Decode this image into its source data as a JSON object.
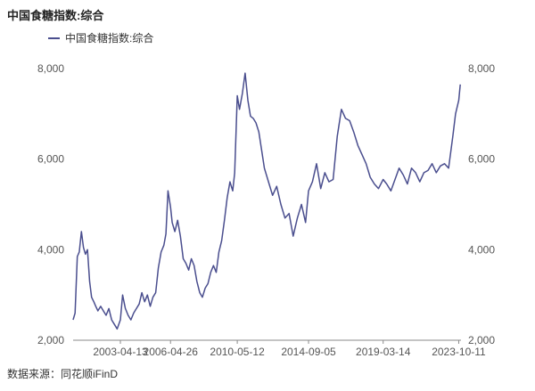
{
  "chart_data": {
    "type": "line",
    "title": "中国食糖指数:综合",
    "legend": {
      "position": "top-left",
      "entries": [
        "中国食糖指数:综合"
      ]
    },
    "source": "数据来源：同花顺iFinD",
    "line_color": "#4a4e8e",
    "grid": false,
    "xlabel": "",
    "ylabel": "",
    "xlim": [
      "2000-06-01",
      "2023-11-30"
    ],
    "ylim": [
      2000,
      8000
    ],
    "x_ticks": [
      "2003-04-13",
      "2006-04-26",
      "2010-05-12",
      "2014-09-05",
      "2019-03-14",
      "2023-10-11"
    ],
    "y_ticks_left": [
      "2,000",
      "4,000",
      "6,000",
      "8,000"
    ],
    "y_ticks_right": [
      "2,000",
      "4,000",
      "6,000",
      "8,000"
    ],
    "y_tick_values": [
      2000,
      4000,
      6000,
      8000
    ],
    "series": [
      {
        "name": "中国食糖指数:综合",
        "x": [
          "2000-06-01",
          "2000-07-15",
          "2000-09-01",
          "2000-10-15",
          "2000-12-01",
          "2001-01-15",
          "2001-03-01",
          "2001-04-15",
          "2001-06-01",
          "2001-07-15",
          "2001-09-01",
          "2001-10-15",
          "2001-12-01",
          "2002-02-01",
          "2002-04-01",
          "2002-06-01",
          "2002-08-01",
          "2002-10-01",
          "2002-12-01",
          "2003-02-01",
          "2003-04-13",
          "2003-06-01",
          "2003-08-01",
          "2003-10-01",
          "2003-12-01",
          "2004-02-01",
          "2004-04-01",
          "2004-06-01",
          "2004-08-01",
          "2004-10-01",
          "2004-12-01",
          "2005-02-01",
          "2005-04-01",
          "2005-06-01",
          "2005-08-01",
          "2005-10-01",
          "2005-12-01",
          "2006-01-15",
          "2006-03-01",
          "2006-04-26",
          "2006-06-01",
          "2006-08-01",
          "2006-10-01",
          "2006-12-01",
          "2007-02-01",
          "2007-04-01",
          "2007-06-01",
          "2007-08-01",
          "2007-10-01",
          "2007-12-01",
          "2008-02-01",
          "2008-04-01",
          "2008-06-01",
          "2008-08-01",
          "2008-10-01",
          "2008-12-01",
          "2009-02-01",
          "2009-04-01",
          "2009-06-01",
          "2009-08-01",
          "2009-10-01",
          "2009-12-01",
          "2010-02-01",
          "2010-03-15",
          "2010-05-12",
          "2010-07-01",
          "2010-09-01",
          "2010-11-01",
          "2011-01-01",
          "2011-03-01",
          "2011-05-01",
          "2011-07-01",
          "2011-09-01",
          "2011-11-01",
          "2012-01-01",
          "2012-04-01",
          "2012-07-01",
          "2012-10-01",
          "2013-01-01",
          "2013-04-01",
          "2013-07-01",
          "2013-10-01",
          "2014-01-01",
          "2014-04-01",
          "2014-07-01",
          "2014-09-05",
          "2014-12-01",
          "2015-03-01",
          "2015-06-01",
          "2015-09-01",
          "2015-12-01",
          "2016-03-01",
          "2016-06-01",
          "2016-09-01",
          "2016-12-01",
          "2017-03-01",
          "2017-06-01",
          "2017-09-01",
          "2017-12-01",
          "2018-03-01",
          "2018-06-01",
          "2018-09-01",
          "2018-12-01",
          "2019-03-14",
          "2019-06-01",
          "2019-09-01",
          "2019-12-01",
          "2020-03-01",
          "2020-06-01",
          "2020-09-01",
          "2020-12-01",
          "2021-03-01",
          "2021-06-01",
          "2021-09-01",
          "2021-12-01",
          "2022-03-01",
          "2022-06-01",
          "2022-09-01",
          "2022-12-01",
          "2023-03-01",
          "2023-06-01",
          "2023-08-01",
          "2023-10-11",
          "2023-11-15"
        ],
        "values": [
          2450,
          2600,
          3850,
          3950,
          4400,
          4050,
          3900,
          4000,
          3300,
          2950,
          2850,
          2750,
          2650,
          2750,
          2650,
          2550,
          2700,
          2450,
          2350,
          2250,
          2450,
          3000,
          2700,
          2550,
          2450,
          2600,
          2700,
          2800,
          3050,
          2850,
          3000,
          2750,
          2950,
          3050,
          3600,
          3950,
          4100,
          4350,
          5300,
          4950,
          4600,
          4400,
          4650,
          4300,
          3800,
          3700,
          3550,
          3800,
          3650,
          3300,
          3050,
          2950,
          3150,
          3250,
          3500,
          3650,
          3500,
          3950,
          4200,
          4650,
          5150,
          5500,
          5300,
          5700,
          7400,
          7100,
          7450,
          7900,
          7300,
          6950,
          6900,
          6800,
          6600,
          6200,
          5800,
          5500,
          5200,
          5400,
          5000,
          4700,
          4800,
          4300,
          4700,
          5000,
          4600,
          5300,
          5500,
          5900,
          5350,
          5700,
          5500,
          5550,
          6500,
          7100,
          6900,
          6850,
          6600,
          6300,
          6100,
          5900,
          5600,
          5450,
          5350,
          5550,
          5450,
          5300,
          5550,
          5800,
          5650,
          5450,
          5800,
          5700,
          5500,
          5700,
          5750,
          5900,
          5700,
          5850,
          5900,
          5800,
          6500,
          7000,
          7300,
          7650
        ]
      }
    ]
  }
}
